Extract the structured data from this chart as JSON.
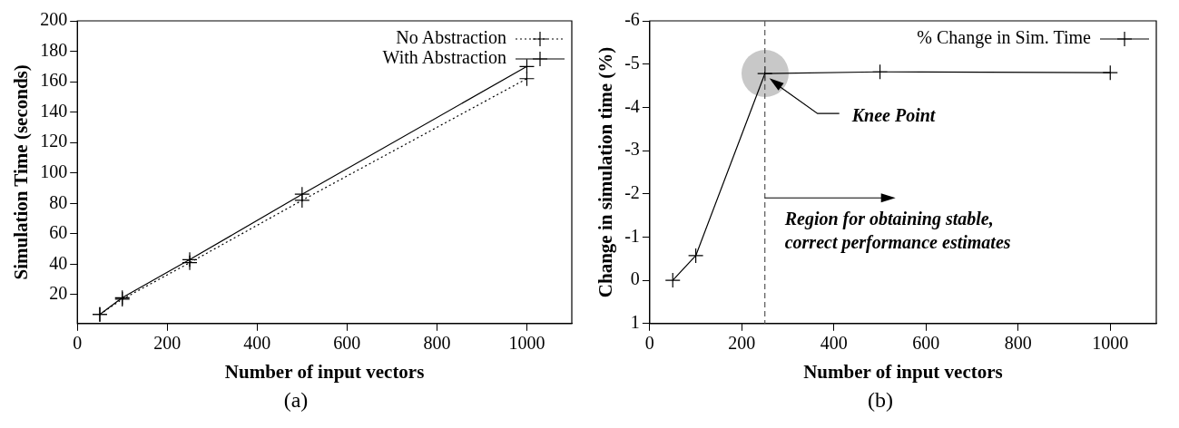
{
  "chart_data": [
    {
      "type": "line",
      "subtitle": "(a)",
      "xlabel": "Number of input vectors",
      "ylabel": "Simulation Time (seconds)",
      "x": [
        50,
        100,
        250,
        500,
        1000
      ],
      "series": [
        {
          "name": "No Abstraction",
          "color": "#000000",
          "values": [
            7,
            17,
            41,
            82,
            162
          ],
          "line_style": "dotted",
          "marker": "cross"
        },
        {
          "name": "With Abstraction",
          "color": "#000000",
          "values": [
            7,
            18,
            43,
            86,
            170
          ],
          "line_style": "solid",
          "marker": "cross"
        }
      ],
      "xlim": [
        0,
        1100
      ],
      "xticks": [
        0,
        200,
        400,
        600,
        800,
        1000
      ],
      "ylim": [
        1,
        200
      ],
      "yticks": [
        20,
        40,
        60,
        80,
        100,
        120,
        140,
        160,
        180,
        200
      ],
      "grid": false,
      "legend": "top right"
    },
    {
      "type": "line",
      "subtitle": "(b)",
      "xlabel": "Number of input vectors",
      "ylabel": "Change in simulation time (%)",
      "x": [
        50,
        100,
        250,
        500,
        1000
      ],
      "series": [
        {
          "name": "% Change in Sim. Time",
          "color": "#000000",
          "values": [
            0,
            -0.57,
            -4.78,
            -4.82,
            -4.8
          ],
          "line_style": "solid",
          "marker": "cross"
        }
      ],
      "xlim": [
        0,
        1100
      ],
      "xticks": [
        0,
        200,
        400,
        600,
        800,
        1000
      ],
      "ylim": [
        1,
        -6
      ],
      "yticks": [
        1,
        0,
        -1,
        -2,
        -3,
        -4,
        -5,
        -6
      ],
      "grid": false,
      "legend": "top right",
      "ref_lines": [
        {
          "axis": "x",
          "value": 250,
          "color": "#555555",
          "line_style": "dashed"
        }
      ],
      "annotations": [
        "Knee Point",
        "Region for obtaining stable,\ncorrect performance estimates"
      ]
    }
  ]
}
